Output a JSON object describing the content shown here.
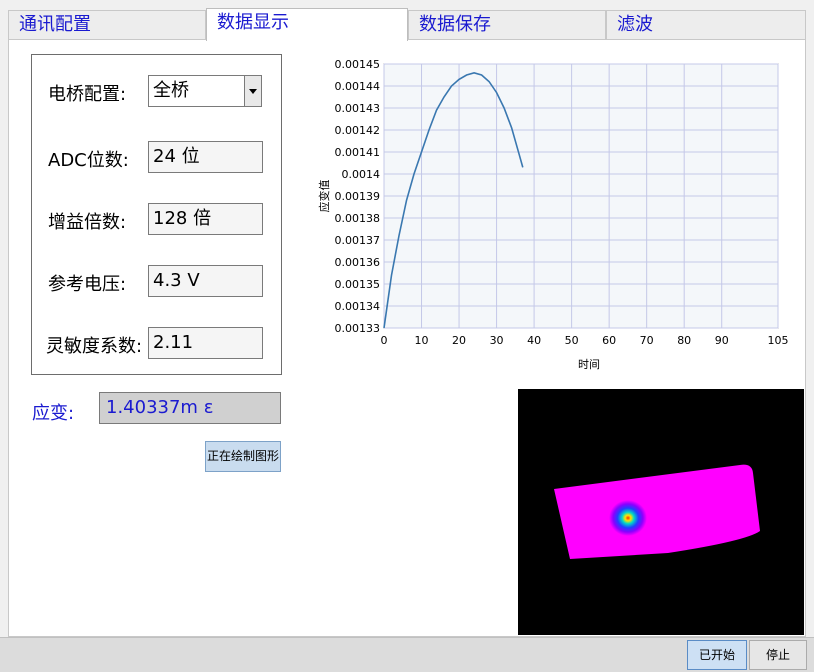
{
  "tabs": [
    {
      "label": "通讯配置"
    },
    {
      "label": "数据显示"
    },
    {
      "label": "数据保存"
    },
    {
      "label": "滤波"
    }
  ],
  "config": {
    "bridge_label": "电桥配置:",
    "bridge_value": "全桥",
    "adc_label": "ADC位数:",
    "adc_value": "24 位",
    "gain_label": "增益倍数:",
    "gain_value": "128 倍",
    "ref_label": "参考电压:",
    "ref_value": "4.3 V",
    "sens_label": "灵敏度系数:",
    "sens_value": "2.11"
  },
  "strain": {
    "label": "应变:",
    "value": "1.40337m ε"
  },
  "draw_button": "正在绘制图形",
  "footer": {
    "start": "已开始",
    "stop": "停止"
  },
  "chart_data": {
    "type": "line",
    "xlabel": "时间",
    "ylabel": "应变值",
    "xlim": [
      0,
      105
    ],
    "ylim": [
      0.00133,
      0.00145
    ],
    "x_ticks": [
      "0",
      "10",
      "20",
      "30",
      "40",
      "50",
      "60",
      "70",
      "80",
      "90",
      "105"
    ],
    "y_ticks": [
      "0.00133",
      "0.00134",
      "0.00135",
      "0.00136",
      "0.00137",
      "0.00138",
      "0.00139",
      "0.0014",
      "0.00141",
      "0.00142",
      "0.00143",
      "0.00144",
      "0.00145"
    ],
    "grid": true,
    "series": [
      {
        "color": "#3a78b0",
        "x": [
          0,
          2,
          4,
          6,
          8,
          10,
          12,
          14,
          16,
          18,
          20,
          22,
          24,
          26,
          28,
          30,
          32,
          34,
          36,
          37
        ],
        "y": [
          0.00133,
          0.001354,
          0.001372,
          0.001388,
          0.0014,
          0.00141,
          0.00142,
          0.001429,
          0.001435,
          0.00144,
          0.001443,
          0.001445,
          0.001446,
          0.001445,
          0.001442,
          0.001437,
          0.00143,
          0.001421,
          0.001409,
          0.001403
        ]
      }
    ]
  }
}
